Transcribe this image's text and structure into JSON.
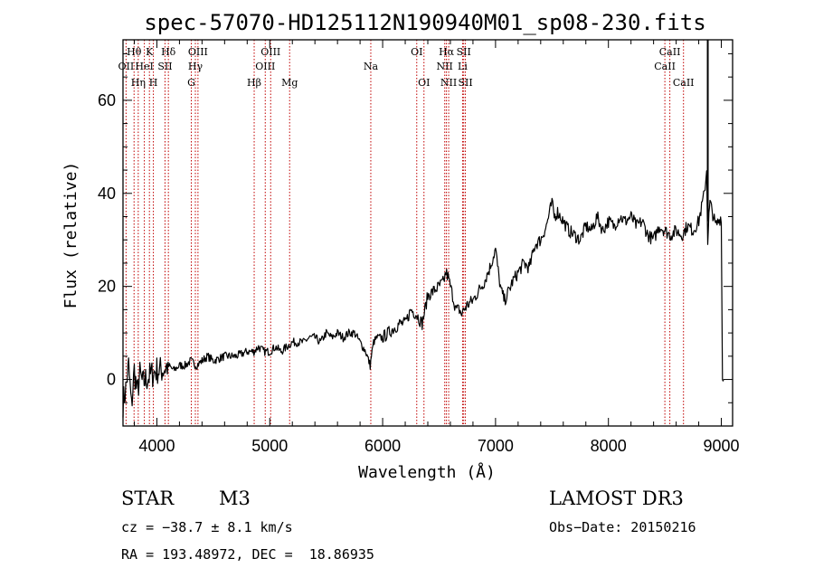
{
  "chart_data": {
    "type": "line",
    "title": "spec-57070-HD125112N190940M01_sp08-230.fits",
    "xlabel": "Wavelength (Å)",
    "ylabel": "Flux (relative)",
    "xlim": [
      3700,
      9100
    ],
    "ylim": [
      -10,
      73
    ],
    "x_ticks": [
      4000,
      5000,
      6000,
      7000,
      8000,
      9000
    ],
    "y_ticks": [
      0,
      20,
      40,
      60
    ],
    "series": [
      {
        "name": "flux",
        "x": [
          3700,
          3725,
          3750,
          3775,
          3800,
          3825,
          3850,
          3875,
          3900,
          3950,
          4000,
          4050,
          4100,
          4150,
          4200,
          4250,
          4300,
          4350,
          4400,
          4450,
          4500,
          4600,
          4700,
          4800,
          4860,
          4900,
          4950,
          5000,
          5050,
          5100,
          5150,
          5200,
          5250,
          5300,
          5350,
          5400,
          5450,
          5500,
          5550,
          5600,
          5650,
          5700,
          5750,
          5800,
          5850,
          5890,
          5900,
          5920,
          5950,
          6000,
          6050,
          6100,
          6150,
          6200,
          6250,
          6300,
          6350,
          6400,
          6450,
          6500,
          6540,
          6560,
          6580,
          6600,
          6620,
          6650,
          6680,
          6700,
          6720,
          6750,
          6800,
          6850,
          6900,
          6950,
          7000,
          7030,
          7050,
          7080,
          7100,
          7150,
          7200,
          7250,
          7300,
          7350,
          7400,
          7450,
          7500,
          7520,
          7550,
          7600,
          7650,
          7700,
          7750,
          7800,
          7850,
          7900,
          7950,
          8000,
          8050,
          8100,
          8150,
          8200,
          8250,
          8300,
          8350,
          8400,
          8450,
          8500,
          8550,
          8600,
          8650,
          8700,
          8750,
          8800,
          8850,
          8870,
          8880,
          8890,
          8900,
          8950,
          9000,
          9010,
          9020
        ],
        "values": [
          -5,
          -2,
          3,
          -6,
          2,
          -3,
          1,
          -1,
          0,
          1,
          2,
          2,
          3,
          2,
          3,
          3,
          4,
          3,
          4,
          5,
          4,
          5,
          5,
          6,
          6,
          7,
          6,
          6,
          7,
          6,
          7,
          8,
          8,
          8,
          9,
          9,
          8,
          10,
          9,
          10,
          9,
          10,
          10,
          8,
          6,
          3,
          5,
          8,
          9,
          9,
          10,
          11,
          12,
          12,
          15,
          14,
          12,
          18,
          19,
          20,
          21,
          23,
          22,
          20,
          18,
          15,
          15,
          14,
          15,
          16,
          17,
          19,
          21,
          24,
          28,
          22,
          19,
          17,
          18,
          21,
          23,
          25,
          24,
          29,
          30,
          33,
          38,
          35,
          36,
          34,
          32,
          31,
          30,
          33,
          32,
          35,
          32,
          34,
          33,
          35,
          34,
          35,
          33,
          34,
          31,
          30,
          33,
          32,
          31,
          32,
          31,
          33,
          32,
          34,
          40,
          45,
          30,
          35,
          38,
          33,
          35,
          0,
          0
        ]
      }
    ],
    "spectral_lines": [
      {
        "name": "OII",
        "wavelength": 3727,
        "row": 2
      },
      {
        "name": "Hθ",
        "wavelength": 3798,
        "row": 1
      },
      {
        "name": "Hη",
        "wavelength": 3835,
        "row": 3
      },
      {
        "name": "HeI",
        "wavelength": 3889,
        "row": 2
      },
      {
        "name": "K",
        "wavelength": 3934,
        "row": 1
      },
      {
        "name": "H",
        "wavelength": 3969,
        "row": 3
      },
      {
        "name": "SII",
        "wavelength": 4072,
        "row": 2
      },
      {
        "name": "Hδ",
        "wavelength": 4102,
        "row": 1
      },
      {
        "name": "G",
        "wavelength": 4305,
        "row": 3
      },
      {
        "name": "Hγ",
        "wavelength": 4341,
        "row": 2
      },
      {
        "name": "OIII",
        "wavelength": 4364,
        "row": 1
      },
      {
        "name": "Hβ",
        "wavelength": 4862,
        "row": 3
      },
      {
        "name": "OIII",
        "wavelength": 4960,
        "row": 2
      },
      {
        "name": "OIII",
        "wavelength": 5008,
        "row": 1
      },
      {
        "name": "Mg",
        "wavelength": 5176,
        "row": 3
      },
      {
        "name": "Na",
        "wavelength": 5895,
        "row": 2
      },
      {
        "name": "OI",
        "wavelength": 6302,
        "row": 1
      },
      {
        "name": "OI",
        "wavelength": 6366,
        "row": 3
      },
      {
        "name": "NII",
        "wavelength": 6550,
        "row": 2
      },
      {
        "name": "Hα",
        "wavelength": 6565,
        "row": 1
      },
      {
        "name": "NII",
        "wavelength": 6585,
        "row": 3
      },
      {
        "name": "Li",
        "wavelength": 6708,
        "row": 2
      },
      {
        "name": "SII",
        "wavelength": 6718,
        "row": 1
      },
      {
        "name": "SII",
        "wavelength": 6733,
        "row": 3
      },
      {
        "name": "CaII",
        "wavelength": 8500,
        "row": 2
      },
      {
        "name": "CaII",
        "wavelength": 8544,
        "row": 1
      },
      {
        "name": "CaII",
        "wavelength": 8665,
        "row": 3
      }
    ]
  },
  "info": {
    "object_class": "STAR",
    "subclass": "M3",
    "survey": "LAMOST DR3",
    "cz": "cz = −38.7 ± 8.1 km/s",
    "obs_date": "Obs−Date: 20150216",
    "coords": "RA = 193.48972, DEC =  18.86935"
  },
  "colors": {
    "spectrum": "#000000",
    "line_markers": "#c00000",
    "axis": "#000000"
  }
}
